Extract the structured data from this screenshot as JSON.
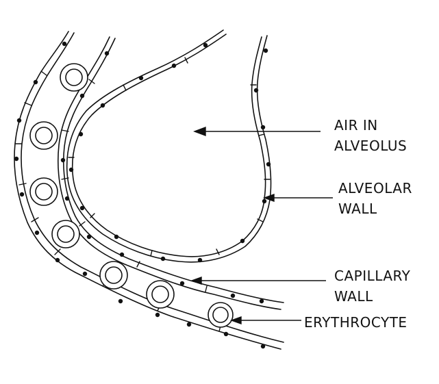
{
  "labels": {
    "air_line1": "AIR IN",
    "air_line2": "ALVEOLUS",
    "alveolar_line1": "ALVEOLAR",
    "alveolar_line2": "WALL",
    "capillary_line1": "CAPILLARY",
    "capillary_line2": "WALL",
    "erythrocyte": "ERYTHROCYTE"
  },
  "colors": {
    "ink": "#111111",
    "background": "#ffffff"
  }
}
